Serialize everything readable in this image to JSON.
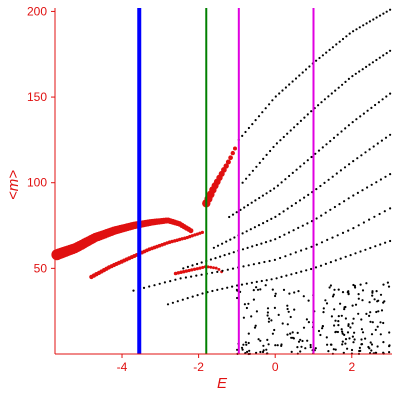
{
  "chart_data": {
    "type": "scatter",
    "title": "",
    "xlabel": "E",
    "ylabel": "<m>",
    "xlim": [
      -5.75,
      3.05
    ],
    "ylim": [
      0,
      202
    ],
    "x_ticks": [
      -4,
      -2,
      0,
      2
    ],
    "x_tick_labels": [
      "-4",
      "-2",
      "0",
      "2"
    ],
    "y_ticks": [
      50,
      100,
      150,
      200
    ],
    "y_tick_labels": [
      "50",
      "100",
      "150",
      "200"
    ],
    "grid": false,
    "legend": "none",
    "axis_color": "#e01010",
    "vertical_lines": [
      {
        "x": -3.55,
        "color": "#0000ff",
        "width": 4
      },
      {
        "x": -1.8,
        "color": "#008000",
        "width": 2
      },
      {
        "x": -0.95,
        "color": "#e000e0",
        "width": 2
      },
      {
        "x": 1.0,
        "color": "#e000e0",
        "width": 2
      }
    ],
    "series": [
      {
        "color": "#e01010",
        "bands": [
          {
            "x0": -5.7,
            "x1": -2.2,
            "y_points": [
              [
                -5.7,
                58
              ],
              [
                -5.2,
                62
              ],
              [
                -4.7,
                68
              ],
              [
                -4.2,
                72
              ],
              [
                -3.7,
                75
              ],
              [
                -3.2,
                77
              ],
              [
                -2.8,
                78
              ],
              [
                -2.5,
                76
              ],
              [
                -2.2,
                72
              ],
              [
                -1.9,
                66
              ]
            ],
            "size_start": 5.5,
            "size_end": 2.5,
            "n": 60
          },
          {
            "x0": -4.8,
            "x1": -1.9,
            "y_points": [
              [
                -4.8,
                45
              ],
              [
                -4.3,
                51
              ],
              [
                -3.8,
                56
              ],
              [
                -3.3,
                61
              ],
              [
                -2.8,
                65
              ],
              [
                -2.3,
                68
              ],
              [
                -1.9,
                71
              ]
            ],
            "size_start": 2.2,
            "size_end": 1.6,
            "n": 45
          },
          {
            "x0": -2.6,
            "x1": -1.4,
            "y_points": [
              [
                -2.6,
                47
              ],
              [
                -2.2,
                49
              ],
              [
                -1.8,
                51
              ],
              [
                -1.5,
                50
              ],
              [
                -1.4,
                48
              ]
            ],
            "size_start": 1.8,
            "size_end": 1.4,
            "n": 18
          },
          {
            "x0": -1.8,
            "x1": -1.05,
            "y_points": [
              [
                -1.8,
                88
              ],
              [
                -1.6,
                97
              ],
              [
                -1.4,
                105
              ],
              [
                -1.2,
                113
              ],
              [
                -1.05,
                120
              ]
            ],
            "size_start": 4.2,
            "size_end": 2.0,
            "n": 14
          }
        ]
      },
      {
        "color": "#000000",
        "bands": [
          {
            "x0": -0.95,
            "x1": 3.0,
            "y_points": [
              [
                -0.95,
                125
              ],
              [
                0.0,
                150
              ],
              [
                1.0,
                170
              ],
              [
                2.0,
                188
              ],
              [
                3.0,
                201
              ]
            ],
            "n": 46
          },
          {
            "x0": -0.85,
            "x1": 3.0,
            "y_points": [
              [
                -0.85,
                100
              ],
              [
                0.0,
                122
              ],
              [
                1.0,
                143
              ],
              [
                2.0,
                162
              ],
              [
                3.0,
                177
              ]
            ],
            "n": 44
          },
          {
            "x0": -1.2,
            "x1": 3.0,
            "y_points": [
              [
                -1.2,
                80
              ],
              [
                0.0,
                97
              ],
              [
                1.0,
                116
              ],
              [
                2.0,
                135
              ],
              [
                3.0,
                152
              ]
            ],
            "n": 44
          },
          {
            "x0": -1.6,
            "x1": 3.0,
            "y_points": [
              [
                -1.6,
                62
              ],
              [
                0.0,
                80
              ],
              [
                1.0,
                95
              ],
              [
                2.0,
                112
              ],
              [
                3.0,
                128
              ]
            ],
            "n": 44
          },
          {
            "x0": -2.4,
            "x1": 3.0,
            "y_points": [
              [
                -2.4,
                50
              ],
              [
                -1.0,
                60
              ],
              [
                0.0,
                67
              ],
              [
                1.0,
                78
              ],
              [
                2.0,
                92
              ],
              [
                3.0,
                105
              ]
            ],
            "n": 46
          },
          {
            "x0": -3.7,
            "x1": 3.0,
            "y_points": [
              [
                -3.7,
                37
              ],
              [
                -2.5,
                44
              ],
              [
                -1.5,
                48
              ],
              [
                0.0,
                55
              ],
              [
                1.0,
                63
              ],
              [
                2.0,
                73
              ],
              [
                3.0,
                85
              ]
            ],
            "n": 50
          },
          {
            "x0": -2.8,
            "x1": 3.0,
            "y_points": [
              [
                -2.8,
                29
              ],
              [
                -1.8,
                36
              ],
              [
                -1.0,
                40
              ],
              [
                0.0,
                44
              ],
              [
                1.0,
                50
              ],
              [
                2.0,
                58
              ],
              [
                3.0,
                66
              ]
            ],
            "n": 46
          }
        ],
        "cloud": {
          "x0": -1.0,
          "x1": 3.0,
          "y0": 0,
          "y1": 42,
          "n": 240
        }
      }
    ]
  }
}
